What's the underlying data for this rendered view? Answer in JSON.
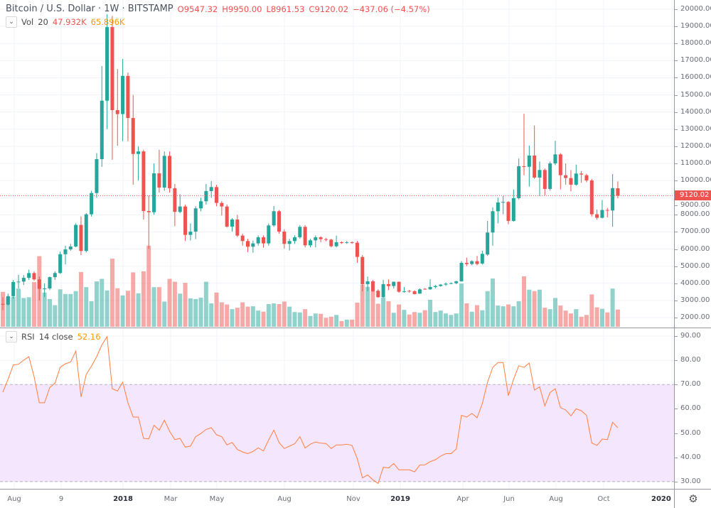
{
  "header": {
    "symbol_title": "Bitcoin / U.S. Dollar · 1W · BITSTAMP",
    "open": "O9547.32",
    "high": "H9950.00",
    "low": "L8961.53",
    "close": "C9120.02",
    "change": "−437.06 (−4.57%)"
  },
  "volume_legend": {
    "name": "Vol",
    "length": "20",
    "value": "47.932K",
    "ma_value": "65.896K"
  },
  "rsi_legend": {
    "name": "RSI",
    "params": "14 close",
    "value": "52.16"
  },
  "price_axis": {
    "labels": [
      "20000.00",
      "19000.00",
      "18000.00",
      "17000.00",
      "16000.00",
      "15000.00",
      "14000.00",
      "13000.00",
      "12000.00",
      "11000.00",
      "10000.00",
      "9000.00",
      "8000.00",
      "7000.00",
      "6000.00",
      "5000.00",
      "4000.00",
      "3000.00",
      "2000.00"
    ],
    "current_price": "9120.02"
  },
  "rsi_axis": {
    "labels": [
      "90.00",
      "80.00",
      "70.00",
      "60.00",
      "50.00",
      "40.00",
      "30.00"
    ]
  },
  "time_axis": {
    "labels": [
      "Aug",
      "9",
      "2018",
      "Mar",
      "May",
      "Aug",
      "Nov",
      "2019",
      "Apr",
      "Jun",
      "Aug",
      "Oct",
      "2020"
    ]
  },
  "colors": {
    "up": "#26a69a",
    "down": "#ef5350",
    "rsi_line": "#ff7f3f",
    "rsi_band": "#f3e6fd",
    "volume_ma_text": "#ff9800"
  },
  "icons": {
    "collapse": "chevron-down-icon",
    "settings": "gear-icon"
  },
  "chart_data": {
    "type": "candlestick",
    "interval": "1W",
    "price_range": [
      2000,
      20000
    ],
    "rsi_range": [
      30,
      90
    ],
    "rsi_band": [
      30,
      70
    ],
    "volume_unit": "K",
    "grid": true,
    "candles": {
      "open": [
        2800,
        2760,
        3250,
        4075,
        4100,
        4320,
        4600,
        4230,
        3680,
        3700,
        4360,
        4600,
        5700,
        5980,
        6150,
        7410,
        5890,
        8030,
        9270,
        11250,
        14660,
        18960,
        14110,
        13880,
        16110,
        13650,
        11550,
        11700,
        8220,
        8150,
        10420,
        9590,
        11440,
        9550,
        8168,
        8485,
        6827,
        7020,
        8375,
        8790,
        9384,
        9619,
        8693,
        8485,
        7311,
        7725,
        6786,
        6468,
        6136,
        6330,
        6689,
        6330,
        7380,
        8209,
        7020,
        6302,
        6468,
        6689,
        7297,
        6219,
        6509,
        6689,
        6578,
        6550,
        6164,
        6398,
        6380,
        6400,
        6371,
        5541,
        3952,
        4118,
        3565,
        3192,
        3952,
        3842,
        4090,
        3510,
        3560,
        3540,
        3400,
        3680,
        3649,
        3787,
        3842,
        3925,
        3980,
        4008,
        4118,
        5196,
        5127,
        5293,
        5155,
        5680,
        6965,
        8209,
        8720,
        8750,
        7644,
        8970,
        10836,
        10800,
        11458,
        10173,
        10615,
        9510,
        11002,
        11527,
        10311,
        10145,
        9758,
        10408,
        10311,
        10007,
        8031,
        7824,
        8280,
        8250,
        9547.32
      ],
      "high": [
        3200,
        3400,
        4200,
        4500,
        4480,
        4800,
        4700,
        4400,
        4000,
        4400,
        4700,
        5850,
        6200,
        6300,
        7500,
        7900,
        8100,
        9400,
        11600,
        16680,
        19700,
        19600,
        16510,
        17100,
        16300,
        15000,
        12000,
        11800,
        9130,
        11000,
        11800,
        11700,
        11700,
        9800,
        9204,
        8600,
        7500,
        8500,
        9000,
        9800,
        9964,
        9750,
        8800,
        8600,
        7800,
        8000,
        6900,
        6600,
        6500,
        6800,
        6800,
        7500,
        8513,
        8280,
        7150,
        6600,
        6800,
        7400,
        7400,
        6600,
        6800,
        6750,
        6650,
        6600,
        6786,
        6450,
        6480,
        6450,
        6480,
        5650,
        4400,
        4200,
        3650,
        4200,
        4230,
        4100,
        4100,
        3790,
        3620,
        3600,
        3700,
        3720,
        4230,
        3900,
        3960,
        4050,
        4050,
        4150,
        5300,
        5500,
        5350,
        5600,
        5900,
        7640,
        8440,
        9000,
        9100,
        8800,
        9480,
        11280,
        13900,
        12039,
        13213,
        11113,
        10700,
        11113,
        12315,
        11600,
        11000,
        10615,
        10933,
        10560,
        10400,
        10100,
        8300,
        8860,
        8400,
        10380,
        9950
      ],
      "low": [
        2430,
        2700,
        3100,
        3700,
        3900,
        4200,
        4150,
        3000,
        3200,
        3600,
        4200,
        4550,
        5100,
        5900,
        6100,
        5650,
        5800,
        7900,
        9000,
        10800,
        13000,
        11210,
        12030,
        12300,
        12300,
        9760,
        10000,
        7720,
        6020,
        8000,
        9300,
        9400,
        9300,
        7338,
        8100,
        6468,
        6500,
        6580,
        8200,
        8600,
        9000,
        8500,
        7960,
        7250,
        7020,
        6700,
        6200,
        5818,
        5790,
        6200,
        6080,
        6200,
        7300,
        6900,
        6026,
        5915,
        6300,
        6600,
        6100,
        6100,
        6095,
        6400,
        6450,
        6100,
        6100,
        6300,
        6300,
        6300,
        5196,
        3538,
        3540,
        3500,
        3150,
        3150,
        3600,
        3700,
        3450,
        3450,
        3450,
        3350,
        3380,
        3620,
        3620,
        3700,
        3800,
        3850,
        3950,
        3950,
        4100,
        5000,
        5050,
        5050,
        5100,
        5600,
        6200,
        7500,
        8030,
        7450,
        7600,
        8900,
        10310,
        9648,
        10100,
        9095,
        9136,
        9400,
        10900,
        9482,
        9758,
        9371,
        9700,
        9870,
        9900,
        7900,
        7713,
        7790,
        7850,
        7298,
        8961.53
      ],
      "close": [
        2760,
        3250,
        4075,
        4100,
        4320,
        4600,
        4230,
        3680,
        3700,
        4360,
        4600,
        5700,
        5980,
        6150,
        7410,
        5890,
        8030,
        9270,
        11250,
        14660,
        18960,
        14110,
        13880,
        16110,
        13650,
        11550,
        11700,
        8220,
        8150,
        10420,
        9590,
        11440,
        9550,
        8168,
        8485,
        6827,
        7020,
        8375,
        8790,
        9384,
        9619,
        8693,
        8485,
        7311,
        7725,
        6786,
        6468,
        6136,
        6330,
        6689,
        6330,
        7380,
        8209,
        7020,
        6302,
        6468,
        6689,
        7297,
        6219,
        6509,
        6689,
        6578,
        6550,
        6164,
        6398,
        6380,
        6400,
        6371,
        5541,
        3952,
        4118,
        3538,
        3192,
        3952,
        3842,
        4090,
        3510,
        3540,
        3540,
        3372,
        3649,
        3660,
        3787,
        3842,
        3925,
        3980,
        4008,
        4118,
        5196,
        5127,
        5293,
        5127,
        5721,
        6965,
        8209,
        8720,
        8750,
        7644,
        8970,
        10836,
        10800,
        11458,
        10173,
        10615,
        9510,
        11002,
        11527,
        10311,
        10145,
        9758,
        10408,
        10350,
        10007,
        8031,
        7824,
        8280,
        8250,
        9557.08,
        9120.02
      ],
      "volume": [
        97,
        82,
        83,
        106,
        80,
        82,
        124,
        196,
        95,
        77,
        60,
        104,
        91,
        91,
        99,
        152,
        110,
        71,
        126,
        133,
        101,
        189,
        107,
        87,
        100,
        151,
        93,
        154,
        225,
        110,
        110,
        70,
        133,
        125,
        92,
        122,
        79,
        77,
        81,
        125,
        65,
        95,
        68,
        62,
        49,
        53,
        68,
        56,
        57,
        45,
        42,
        63,
        65,
        63,
        70,
        56,
        41,
        40,
        49,
        30,
        37,
        36,
        25,
        28,
        33,
        16,
        20,
        20,
        67,
        117,
        111,
        99,
        64,
        81,
        71,
        39,
        62,
        47,
        34,
        41,
        39,
        46,
        75,
        41,
        45,
        37,
        33,
        37,
        120,
        65,
        42,
        60,
        46,
        99,
        134,
        59,
        57,
        62,
        57,
        71,
        140,
        103,
        99,
        103,
        53,
        49,
        80,
        59,
        45,
        37,
        49,
        28,
        33,
        90,
        54,
        50,
        40,
        106,
        47.932
      ]
    },
    "rsi": [
      66.9,
      72.2,
      78.1,
      78.4,
      80.1,
      81.5,
      73.2,
      62.5,
      62.5,
      68.8,
      70.6,
      77.1,
      78.6,
      79.3,
      83.8,
      64.9,
      74.2,
      77.6,
      81.5,
      86.4,
      89.8,
      68.3,
      67.4,
      71.0,
      62.5,
      56.6,
      56.6,
      47.8,
      47.6,
      53.2,
      51.2,
      55.3,
      50.7,
      47.3,
      47.8,
      44.2,
      44.6,
      48.5,
      49.8,
      51.5,
      52.2,
      49.3,
      48.5,
      45.1,
      46.1,
      43.2,
      42.2,
      41.5,
      42.4,
      43.9,
      42.6,
      47.1,
      51.2,
      46.1,
      43.6,
      44.6,
      45.6,
      48.5,
      43.8,
      45.4,
      46.3,
      45.8,
      45.7,
      43.6,
      45.1,
      45.1,
      45.4,
      44.9,
      39.5,
      31.5,
      32.7,
      30.7,
      29.2,
      35.9,
      35.6,
      37.4,
      34.8,
      34.8,
      34.8,
      34.0,
      36.8,
      36.9,
      38.2,
      39.0,
      40.5,
      41.5,
      41.5,
      43.4,
      57.3,
      56.6,
      58.1,
      56.3,
      62.2,
      71.0,
      77.1,
      79.1,
      79.1,
      65.4,
      72.2,
      77.8,
      77.1,
      78.9,
      67.7,
      69.1,
      61.2,
      66.7,
      68.3,
      60.5,
      59.5,
      57.1,
      60.0,
      59.2,
      57.3,
      45.9,
      44.9,
      47.5,
      47.3,
      54.5,
      52.16
    ]
  }
}
